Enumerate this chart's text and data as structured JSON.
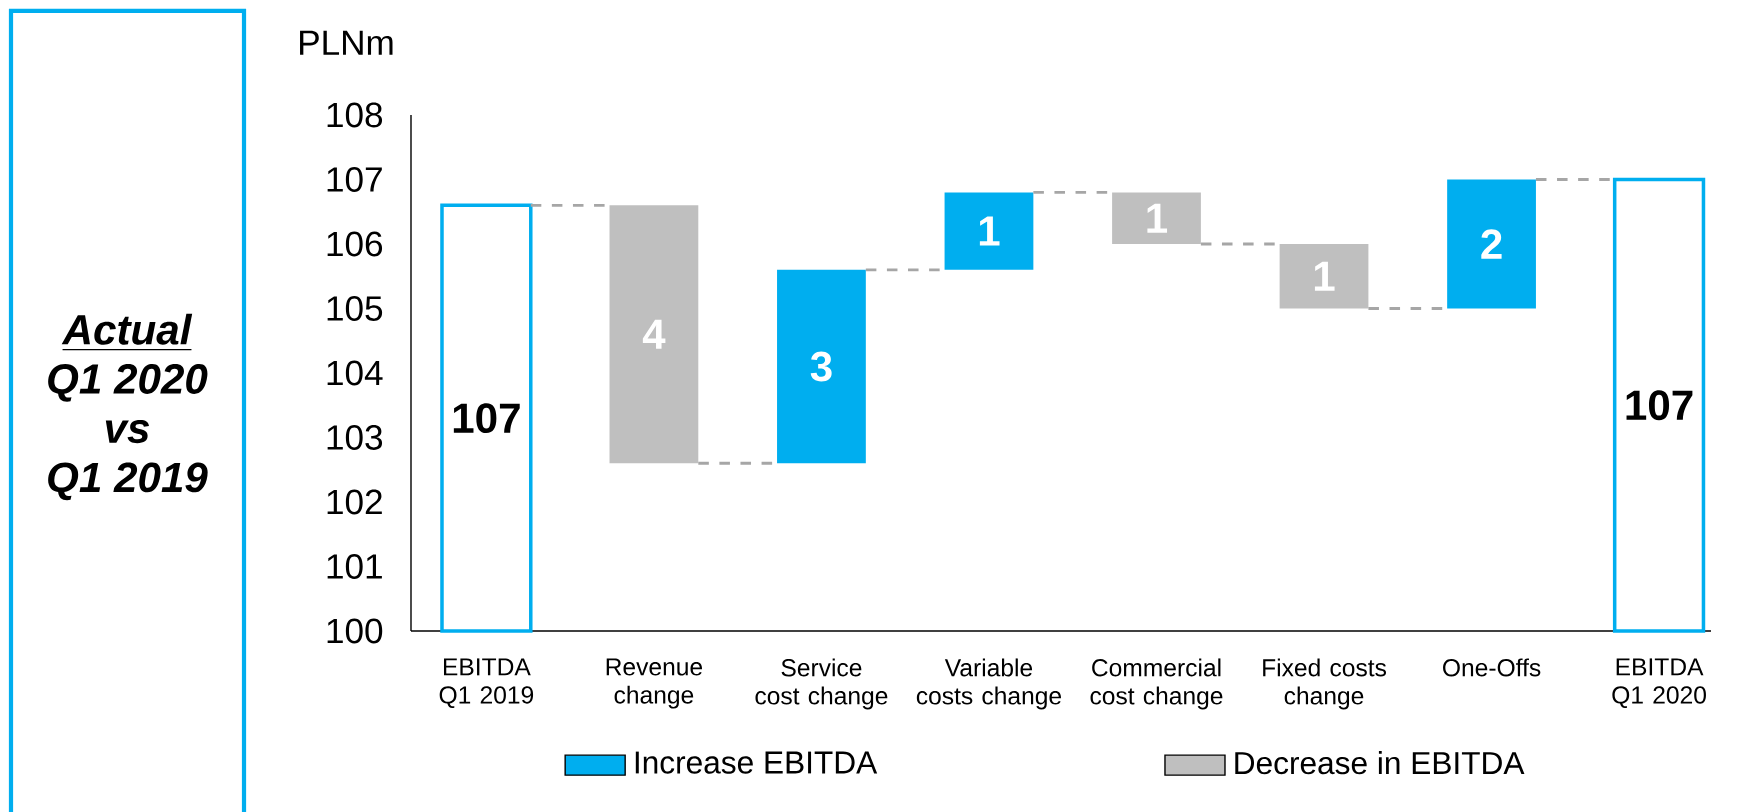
{
  "chart_data": {
    "type": "bar",
    "ylabel": "PLNm",
    "categories": [
      "EBITDA Q1 2019",
      "Revenue change",
      "Service cost change",
      "Variable costs change",
      "Commercial cost change",
      "Fixed costs change",
      "One-Offs",
      "EBITDA Q1 2020"
    ],
    "series": [
      {
        "color": "#00aeef",
        "values": [
          106.6,
          null,
          null,
          null,
          null,
          null,
          null,
          107.0
        ],
        "value_labels": [
          "107",
          null,
          null,
          null,
          null,
          null,
          null,
          "107"
        ]
      },
      {
        "name": "Increase EBITDA",
        "color": "#00aeef",
        "values": [
          null,
          null,
          3.0,
          1.2,
          null,
          null,
          2.0,
          null
        ],
        "base": [
          null,
          null,
          102.6,
          105.6,
          null,
          null,
          105.0,
          null
        ],
        "value_labels": [
          null,
          null,
          "3",
          "1",
          null,
          null,
          "2",
          null
        ]
      },
      {
        "name": "Decrease in EBITDA",
        "color": "#bfbfbf",
        "values": [
          null,
          -4.0,
          null,
          null,
          -0.8,
          -1.0,
          null,
          null
        ],
        "base": [
          null,
          106.6,
          null,
          null,
          106.8,
          106.0,
          null,
          null
        ],
        "value_labels": [
          null,
          "4",
          null,
          null,
          "1",
          "1",
          null,
          null
        ]
      }
    ],
    "ylim": [
      100,
      108
    ],
    "yticks": [
      100,
      101,
      102,
      103,
      104,
      105,
      106,
      107,
      108
    ],
    "legend": "bottom",
    "annotations": [
      "Actual",
      "Q1 2020",
      "vs",
      "Q1 2019"
    ]
  }
}
